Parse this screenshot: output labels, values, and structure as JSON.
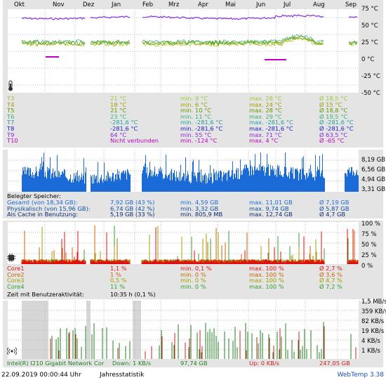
{
  "months": [
    "Okt",
    "Nov",
    "Dez",
    "Jan",
    "Feb",
    "Mrz",
    "Apr",
    "Mai",
    "Jun",
    "Jul",
    "Aug",
    "Sep"
  ],
  "temp_axis": [
    "75 °C",
    "50 °C",
    "25 °C",
    "0 °C",
    "-25 °C",
    "-50 °C"
  ],
  "temp_rows": [
    {
      "name": "T3",
      "cur": "21 °C",
      "min": "min. 9 °C",
      "max": "max. 28 °C",
      "avg": "Ø 18,5 °C",
      "color": "#9acd32"
    },
    {
      "name": "T4",
      "cur": "18 °C",
      "min": "min. 6 °C",
      "max": "max. 24 °C",
      "avg": "Ø 15 °C",
      "color": "#a0a000"
    },
    {
      "name": "T5",
      "cur": "21 °C",
      "min": "min. 10 °C",
      "max": "max. 28 °C",
      "avg": "Ø 18,8 °C",
      "color": "#5f9a00"
    },
    {
      "name": "T6",
      "cur": "23 °C",
      "min": "min. 11 °C",
      "max": "max. 29 °C",
      "avg": "Ø 19,5 °C",
      "color": "#3cb371"
    },
    {
      "name": "T7",
      "cur": "-281,6 °C",
      "min": "min. -281,6 °C",
      "max": "max. -281,6 °C",
      "avg": "Ø -281,6 °C",
      "color": "#20a0a0"
    },
    {
      "name": "T8",
      "cur": "-281,6 °C",
      "min": "min. -281,6 °C",
      "max": "max. -281,6 °C",
      "avg": "Ø -281,6 °C",
      "color": "#1c1cc0"
    },
    {
      "name": "T9",
      "cur": "64 °C",
      "min": "min. 55 °C",
      "max": "max. 71 °C",
      "avg": "Ø 63,5 °C",
      "color": "#8a2be2"
    },
    {
      "name": "T10",
      "cur": "Nicht verbunden",
      "min": "min. -124 °C",
      "max": "max. 4 °C",
      "avg": "Ø -65 °C",
      "color": "#c000c0"
    }
  ],
  "mem_axis": [
    "8,19 GB",
    "6,56 GB",
    "4,94 GB",
    "3,31 GB"
  ],
  "mem_title": "Belegter Speicher:",
  "mem_rows": [
    {
      "name": "Gesamt (von 18,34 GB):",
      "cur": "7,92 GB (43 %)",
      "min": "min. 4,59 GB",
      "max": "max. 11,01 GB",
      "avg": "Ø 7,19 GB",
      "color": "#1a6ad8"
    },
    {
      "name": "Physikalisch (von 15,96 GB):",
      "cur": "6,74 GB (42 %)",
      "min": "min. 3,32 GB",
      "max": "max. 9,74 GB",
      "avg": "Ø 5,87 GB",
      "color": "#1050a0"
    },
    {
      "name": "Als Cache in Benutzung:",
      "cur": "5,19 GB (33 %)",
      "min": "min. 805,9 MB",
      "max": "max. 12,74 GB",
      "avg": "Ø 4,7 GB",
      "color": "#0a2a70"
    }
  ],
  "cpu_axis": [
    "100 %",
    "75 %",
    "50 %",
    "25 %",
    "0 %"
  ],
  "cpu_rows": [
    {
      "name": "Core1",
      "cur": "1,1 %",
      "min": "min. 0,1 %",
      "max": "max. 100 %",
      "avg": "Ø 2,7 %",
      "color": "#e01010"
    },
    {
      "name": "Core2",
      "cur": "1 %",
      "min": "min. 0 %",
      "max": "max. 100 %",
      "avg": "Ø 3,6 %",
      "color": "#c86400"
    },
    {
      "name": "Core3",
      "cur": "0,5 %",
      "min": "min. 0 %",
      "max": "max. 100 %",
      "avg": "Ø 4,7 %",
      "color": "#a0a000"
    },
    {
      "name": "Core4",
      "cur": "11 %",
      "min": "min. 0 %",
      "max": "max. 100 %",
      "avg": "Ø 7,2 %",
      "color": "#30a030"
    }
  ],
  "activity_label": "Zeit mit Benutzeraktivität:",
  "activity_value": "10:35 h (0,1 %)",
  "net_axis": [
    "1,5 MB/s",
    "359 KB/s",
    "82 KB/s",
    "19 KB/s",
    "4 KB/s",
    "1 KB/s"
  ],
  "net": {
    "adapter": "Intel(R) I210 Gigabit Network Cor",
    "down": "Down: 1 KB/s",
    "down_total": "97,74 GB",
    "up": "Up: 0 KB/s",
    "up_total": "247,05 GB"
  },
  "footer": {
    "datetime": "22.09.2019 00:00:44 Uhr",
    "mode": "Jahresstatistik",
    "app": "WebTemp 3.38"
  },
  "colors": {
    "panel": "#e4e4e4",
    "mem_bar": "#1a6ad8",
    "temp_purple": "#8a2be2",
    "net_down": "#208020",
    "net_up": "#cc2020"
  }
}
